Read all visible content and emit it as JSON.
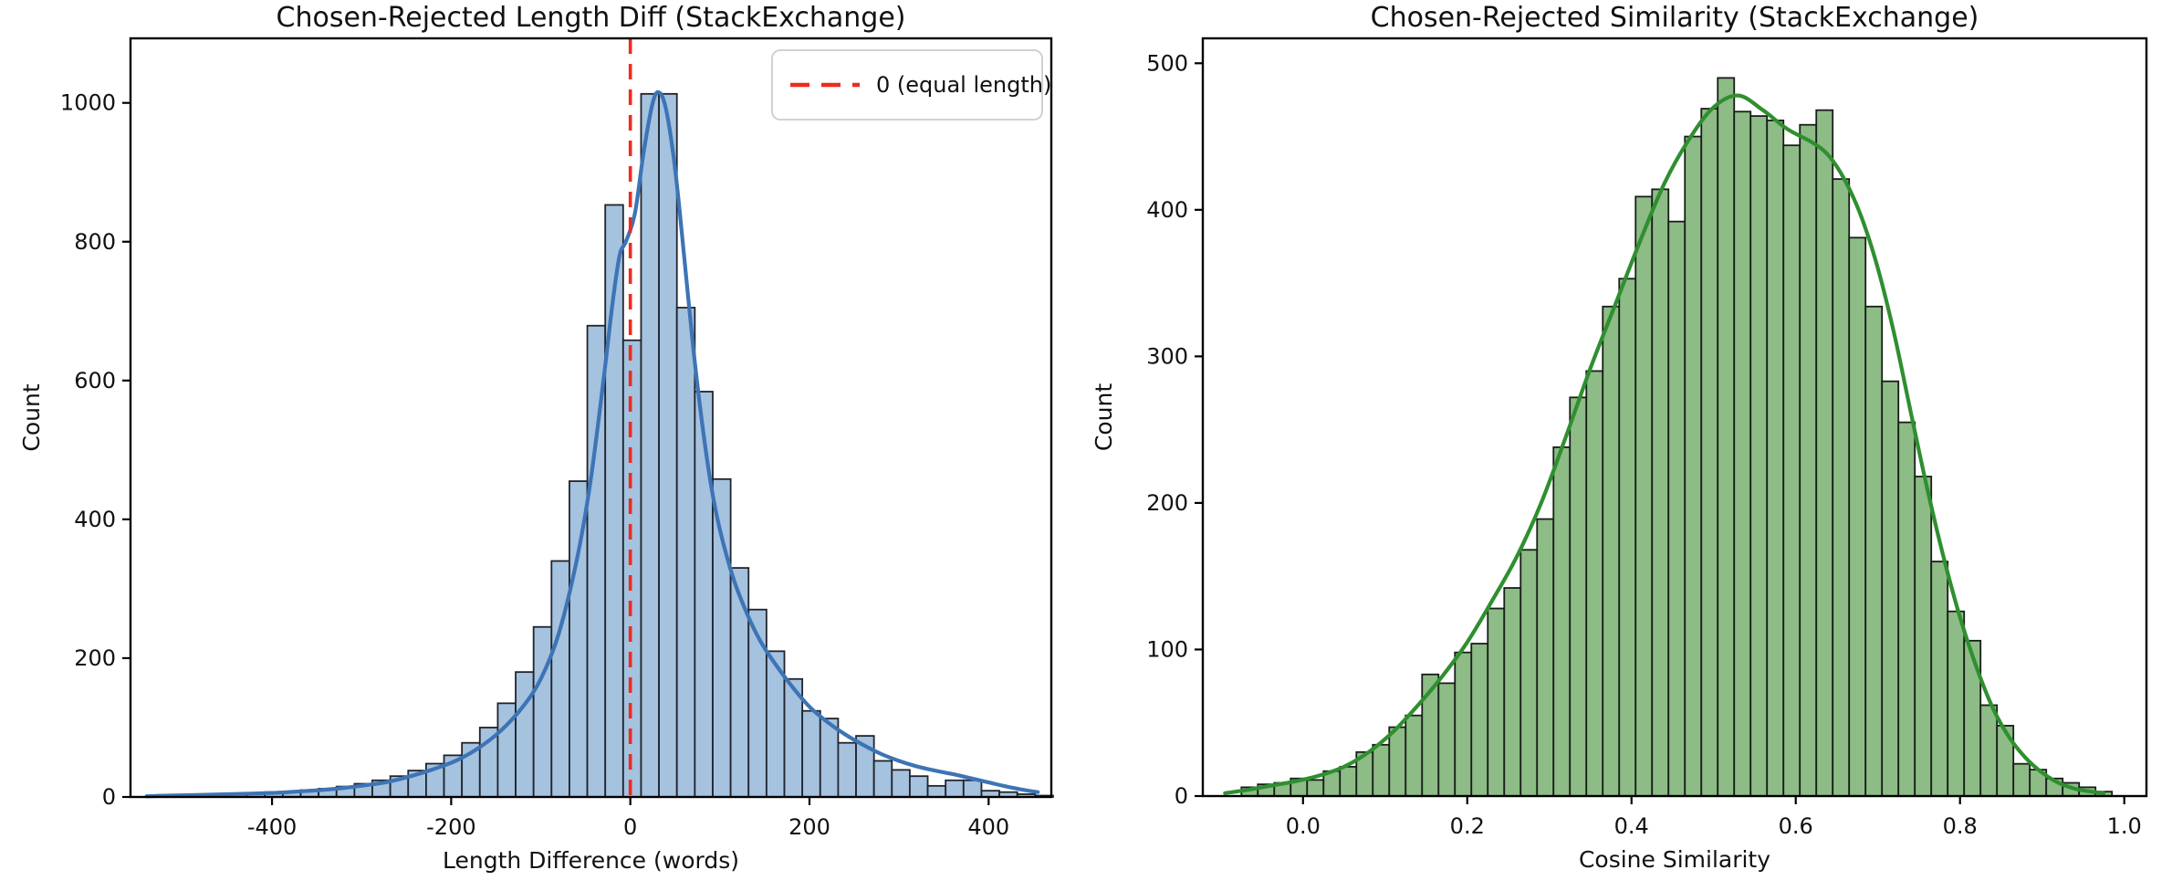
{
  "chart_data": [
    {
      "name": "length-diff-chart",
      "type": "histogram",
      "title": "Chosen-Rejected Length Diff (StackExchange)",
      "xlabel": "Length Difference (words)",
      "ylabel": "Count",
      "xlim": [
        -558,
        470
      ],
      "ylim": [
        0,
        1093
      ],
      "xtick_vals": [
        -400,
        -200,
        0,
        200,
        400
      ],
      "xtick_labels": [
        "-400",
        "-200",
        "0",
        "200",
        "400"
      ],
      "ytick_vals": [
        0,
        200,
        400,
        600,
        800,
        1000
      ],
      "ytick_labels": [
        "0",
        "200",
        "400",
        "600",
        "800",
        "1000"
      ],
      "grid": false,
      "colors": {
        "bar_fill": "#a5c2df",
        "bar_edge": "#20242c",
        "kde": "#3d74b5"
      },
      "bins": {
        "start": -528,
        "width": 20,
        "counts": [
          3,
          3,
          4,
          4,
          5,
          6,
          7,
          8,
          10,
          12,
          15,
          19,
          24,
          30,
          38,
          48,
          60,
          78,
          100,
          135,
          180,
          245,
          340,
          455,
          679,
          853,
          658,
          1013,
          1013,
          705,
          584,
          458,
          330,
          270,
          210,
          170,
          124,
          113,
          78,
          88,
          52,
          39,
          30,
          16,
          24,
          24,
          9,
          7,
          4,
          2
        ]
      },
      "kde_points": [
        [
          -540,
          1
        ],
        [
          -515,
          2
        ],
        [
          -480,
          3
        ],
        [
          -450,
          4
        ],
        [
          -420,
          5
        ],
        [
          -395,
          6
        ],
        [
          -370,
          8
        ],
        [
          -345,
          10
        ],
        [
          -320,
          13
        ],
        [
          -295,
          17
        ],
        [
          -270,
          22
        ],
        [
          -245,
          30
        ],
        [
          -220,
          40
        ],
        [
          -195,
          52
        ],
        [
          -170,
          70
        ],
        [
          -145,
          95
        ],
        [
          -120,
          130
        ],
        [
          -100,
          170
        ],
        [
          -80,
          235
        ],
        [
          -60,
          340
        ],
        [
          -45,
          450
        ],
        [
          -30,
          600
        ],
        [
          -20,
          710
        ],
        [
          -12,
          780
        ],
        [
          -5,
          800
        ],
        [
          5,
          840
        ],
        [
          15,
          930
        ],
        [
          25,
          1000
        ],
        [
          32,
          1015
        ],
        [
          40,
          990
        ],
        [
          50,
          905
        ],
        [
          60,
          780
        ],
        [
          70,
          650
        ],
        [
          80,
          540
        ],
        [
          90,
          450
        ],
        [
          100,
          385
        ],
        [
          115,
          315
        ],
        [
          130,
          265
        ],
        [
          145,
          225
        ],
        [
          160,
          195
        ],
        [
          180,
          160
        ],
        [
          200,
          130
        ],
        [
          220,
          108
        ],
        [
          240,
          90
        ],
        [
          260,
          75
        ],
        [
          280,
          62
        ],
        [
          300,
          52
        ],
        [
          320,
          44
        ],
        [
          340,
          38
        ],
        [
          360,
          33
        ],
        [
          380,
          27
        ],
        [
          400,
          21
        ],
        [
          420,
          15
        ],
        [
          440,
          10
        ],
        [
          455,
          7
        ]
      ],
      "vline": {
        "x": 0,
        "color": "#ee2b20",
        "style": "dashed",
        "legend_label": "0 (equal length)"
      }
    },
    {
      "name": "similarity-chart",
      "type": "histogram",
      "title": "Chosen-Rejected Similarity (StackExchange)",
      "xlabel": "Cosine Similarity",
      "ylabel": "Count",
      "xlim": [
        -0.122,
        1.027
      ],
      "ylim": [
        0,
        517
      ],
      "xtick_vals": [
        0.0,
        0.2,
        0.4,
        0.6,
        0.8,
        1.0
      ],
      "xtick_labels": [
        "0.0",
        "0.2",
        "0.4",
        "0.6",
        "0.8",
        "1.0"
      ],
      "ytick_vals": [
        0,
        100,
        200,
        300,
        400,
        500
      ],
      "ytick_labels": [
        "0",
        "100",
        "200",
        "300",
        "400",
        "500"
      ],
      "grid": false,
      "colors": {
        "bar_fill": "#8dbc86",
        "bar_edge": "#181d18",
        "kde": "#2f8f2f"
      },
      "bins": {
        "start": -0.075,
        "width": 0.02,
        "counts": [
          6,
          8,
          9,
          12,
          11,
          17,
          20,
          30,
          35,
          47,
          55,
          83,
          77,
          98,
          104,
          128,
          142,
          168,
          189,
          238,
          272,
          290,
          334,
          353,
          409,
          414,
          392,
          450,
          469,
          490,
          467,
          464,
          461,
          444,
          458,
          468,
          421,
          381,
          334,
          283,
          255,
          218,
          160,
          126,
          106,
          62,
          48,
          22,
          18,
          12,
          9,
          6,
          3
        ]
      },
      "kde_points": [
        [
          -0.095,
          2
        ],
        [
          -0.07,
          4
        ],
        [
          -0.04,
          7
        ],
        [
          -0.01,
          10
        ],
        [
          0.02,
          14
        ],
        [
          0.05,
          20
        ],
        [
          0.08,
          30
        ],
        [
          0.11,
          44
        ],
        [
          0.14,
          62
        ],
        [
          0.17,
          82
        ],
        [
          0.2,
          105
        ],
        [
          0.23,
          133
        ],
        [
          0.26,
          163
        ],
        [
          0.29,
          200
        ],
        [
          0.32,
          245
        ],
        [
          0.35,
          292
        ],
        [
          0.38,
          335
        ],
        [
          0.41,
          378
        ],
        [
          0.44,
          418
        ],
        [
          0.47,
          448
        ],
        [
          0.5,
          470
        ],
        [
          0.53,
          478
        ],
        [
          0.56,
          468
        ],
        [
          0.59,
          455
        ],
        [
          0.62,
          446
        ],
        [
          0.64,
          437
        ],
        [
          0.66,
          420
        ],
        [
          0.68,
          395
        ],
        [
          0.7,
          360
        ],
        [
          0.72,
          315
        ],
        [
          0.74,
          262
        ],
        [
          0.76,
          210
        ],
        [
          0.78,
          163
        ],
        [
          0.8,
          122
        ],
        [
          0.82,
          88
        ],
        [
          0.84,
          60
        ],
        [
          0.86,
          40
        ],
        [
          0.88,
          26
        ],
        [
          0.9,
          16
        ],
        [
          0.92,
          9
        ],
        [
          0.94,
          5
        ],
        [
          0.96,
          3
        ],
        [
          0.975,
          2
        ]
      ],
      "vline": null
    }
  ]
}
